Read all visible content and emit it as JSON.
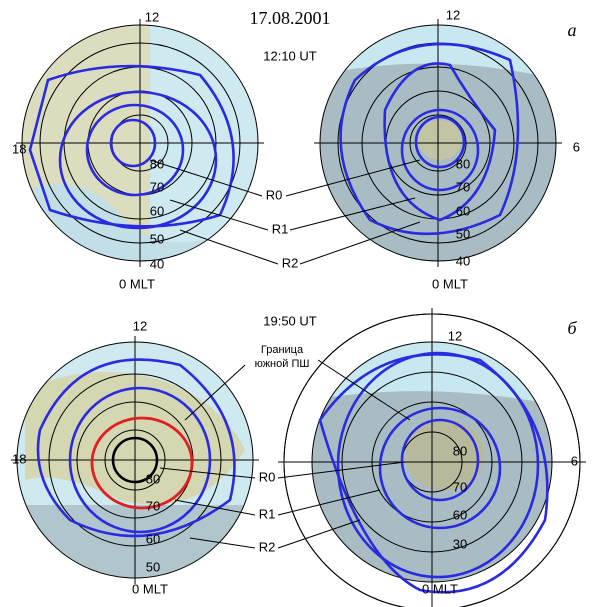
{
  "title": "17.08.2001",
  "panels": [
    {
      "label": "а",
      "time": "12:10 UT",
      "callouts": [
        "R0",
        "R1",
        "R2"
      ]
    },
    {
      "label": "б",
      "time": "19:50 UT",
      "callouts": [
        "R0",
        "R1",
        "R2"
      ],
      "annotation": [
        "Граница",
        "южной ПШ"
      ]
    }
  ],
  "plots": [
    {
      "top": "12",
      "side": "18",
      "bottom": "0 MLT",
      "rings": [
        "80",
        "70",
        "60",
        "50",
        "40"
      ]
    },
    {
      "top": "12",
      "side": "6",
      "bottom": "0 MLT",
      "rings": [
        "80",
        "70",
        "60",
        "50",
        "40"
      ]
    },
    {
      "top": "12",
      "side": "18",
      "bottom": "0 MLT",
      "rings": [
        "80",
        "70",
        "60",
        "50"
      ]
    },
    {
      "top": "12",
      "side": "6",
      "bottom": "0 MLT",
      "rings": [
        "80",
        "70",
        "60",
        "30"
      ]
    }
  ]
}
